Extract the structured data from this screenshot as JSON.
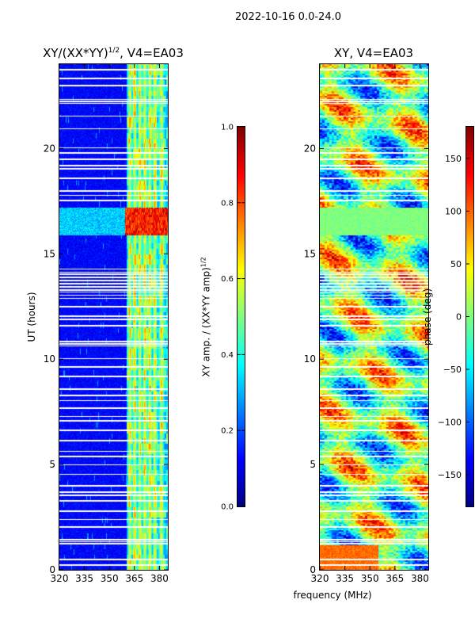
{
  "figure": {
    "suptitle": "2022-10-16 0.0-24.0",
    "shared_xlabel": "frequency (MHz)"
  },
  "colors": {
    "jet_low": "#00007f",
    "jet_blue": "#0000ff",
    "jet_cyan": "#00ffff",
    "jet_yellow": "#ffff00",
    "jet_red": "#ff0000",
    "jet_high": "#7f0000",
    "gap": "#ffffff"
  },
  "chart_data": [
    {
      "type": "heatmap",
      "title_main": "XY/(XX*YY)",
      "title_sup": "1/2",
      "title_suffix": ", V4=EA03",
      "xlabel": "",
      "ylabel": "UT (hours)",
      "xlim": [
        320,
        385
      ],
      "ylim": [
        0,
        24
      ],
      "xticks": [
        320,
        335,
        350,
        365,
        380
      ],
      "yticks": [
        0,
        5,
        10,
        15,
        20
      ],
      "colorbar": {
        "label_main": "XY amp. / (XX*YY amp)",
        "label_sup": "1/2",
        "range": [
          0.0,
          1.0
        ],
        "ticks": [
          "0.0",
          "0.2",
          "0.4",
          "0.6",
          "0.8",
          "1.0"
        ],
        "colormap": "jet"
      },
      "description": "Normalized cross-correlation amplitude vs frequency and UT. Mostly low (~0.1) below 360 MHz; bright channels (0.3-0.6) between 360 and 385 MHz; a high-amplitude episode (0.8-0.9) near 16-17 UT."
    },
    {
      "type": "heatmap",
      "title_main": "XY, V4=EA03",
      "xlabel": "frequency (MHz)",
      "ylabel": "",
      "xlim": [
        320,
        385
      ],
      "ylim": [
        0,
        24
      ],
      "xticks": [
        320,
        335,
        350,
        365,
        380
      ],
      "yticks": [
        0,
        5,
        10,
        15,
        20
      ],
      "colorbar": {
        "label": "phase (deg)",
        "range": [
          -180,
          180
        ],
        "ticks": [
          "150",
          "100",
          "50",
          "0",
          "−50",
          "−100",
          "−150"
        ],
        "colormap": "jet"
      },
      "description": "Cross-correlation phase vs frequency and UT, varying across the full -180 to 180 degree range."
    }
  ],
  "gap_hours": [
    0.25,
    0.5,
    1.25,
    1.35,
    1.45,
    2.05,
    2.4,
    2.8,
    3.3,
    3.55,
    3.7,
    4.0,
    4.55,
    5.0,
    5.4,
    5.65,
    6.15,
    6.65,
    7.1,
    7.3,
    7.7,
    8.05,
    8.3,
    8.6,
    9.2,
    9.65,
    10.05,
    10.65,
    10.75,
    10.85,
    11.6,
    11.9,
    12.05,
    12.5,
    12.9,
    13.05,
    13.2,
    13.3,
    13.45,
    13.6,
    13.75,
    13.9,
    14.05,
    14.15,
    14.3,
    17.55,
    17.8,
    18.0,
    18.6,
    19.05,
    19.2,
    19.5,
    19.8,
    20.05,
    20.95,
    21.55,
    22.15,
    22.25,
    22.35,
    23.0,
    23.35,
    23.75
  ],
  "highlight_band_hours": [
    15.9,
    17.2
  ]
}
